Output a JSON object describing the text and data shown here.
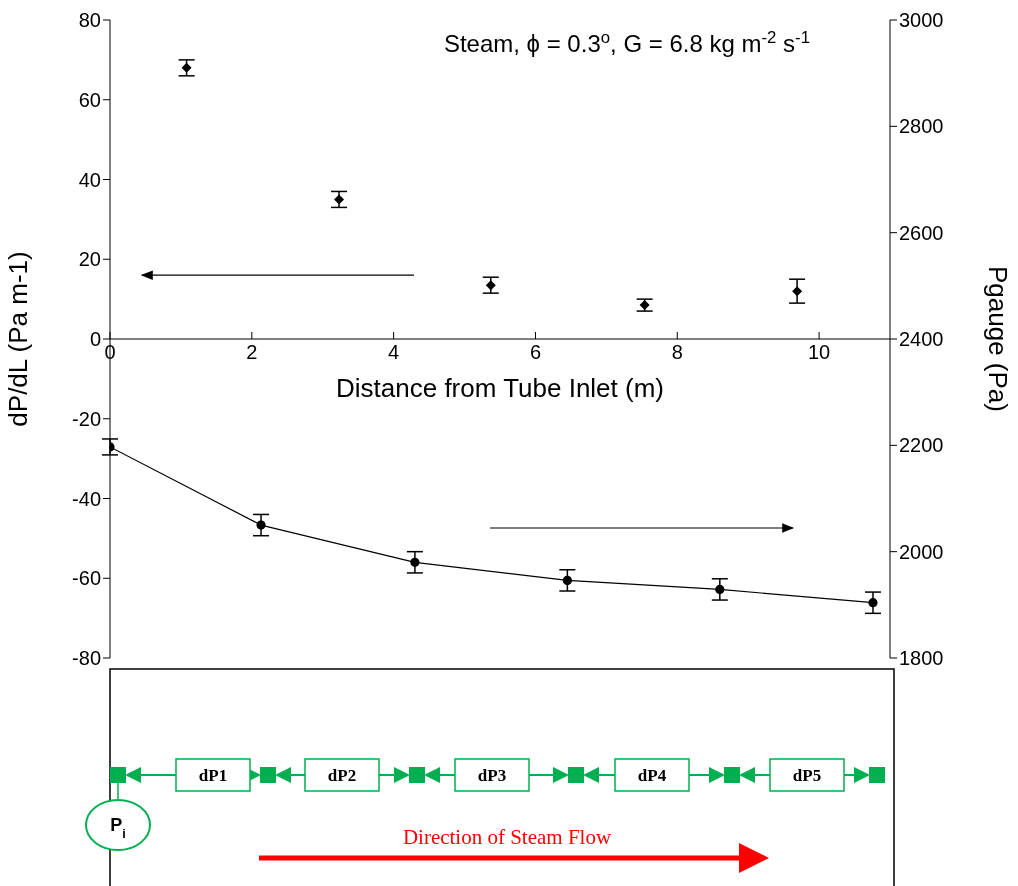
{
  "chart_data": {
    "type": "scatter",
    "title": "Steam, ϕ = 0.3$^{o}$, G = 6.8 kg m$^{-2}$ s$^{-1}$",
    "xlabel": "Distance from Tube Inlet (m)",
    "ylabel": "dP/dL (Pa m-1)",
    "y2label": "Pgauge (Pa)",
    "xlim": [
      0,
      11
    ],
    "xticks": [
      0,
      2,
      4,
      6,
      8,
      10
    ],
    "ylim": [
      -80,
      80
    ],
    "yticks": [
      -80,
      -60,
      -40,
      -20,
      0,
      20,
      40,
      60,
      80
    ],
    "y2lim": [
      1800,
      3000
    ],
    "y2ticks": [
      1800,
      2000,
      2200,
      2400,
      2600,
      2800,
      3000
    ],
    "series": [
      {
        "color": "#000000",
        "marker": "diamond",
        "x": [
          1.08,
          3.23,
          5.37,
          7.54,
          9.69
        ],
        "values": [
          68,
          35,
          13.5,
          8.5,
          12
        ],
        "errors": [
          2,
          2,
          2,
          1.5,
          3
        ]
      },
      {
        "type": "line",
        "axis": "y2",
        "color": "#000000",
        "marker": "circle",
        "x": [
          0,
          2.13,
          4.3,
          6.45,
          8.6,
          10.76
        ],
        "values": [
          2197,
          2050,
          1980,
          1946,
          1929,
          1904
        ],
        "errors": [
          15,
          20,
          20,
          20,
          20,
          20
        ]
      }
    ],
    "annotations": [
      "dP1",
      "dP2",
      "dP3",
      "dP4",
      "dP5",
      "P$_{i}$",
      "Direction of Steam Flow"
    ]
  }
}
